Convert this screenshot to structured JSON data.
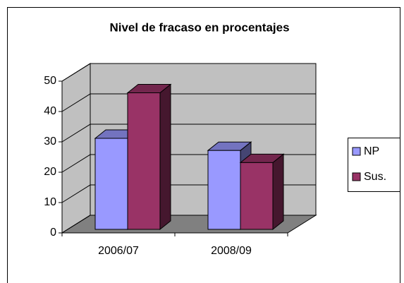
{
  "chart_data": {
    "type": "bar3d",
    "title": "Nivel de fracaso en procentajes",
    "categories": [
      "2006/07",
      "2008/09"
    ],
    "series": [
      {
        "name": "NP",
        "color": "#9999ff",
        "values": [
          30,
          26
        ]
      },
      {
        "name": "Sus.",
        "color": "#993366",
        "values": [
          45,
          22
        ]
      }
    ],
    "ylim": [
      0,
      50
    ],
    "yticks": [
      0,
      10,
      20,
      30,
      40,
      50
    ],
    "grid": true,
    "legend": "right"
  }
}
